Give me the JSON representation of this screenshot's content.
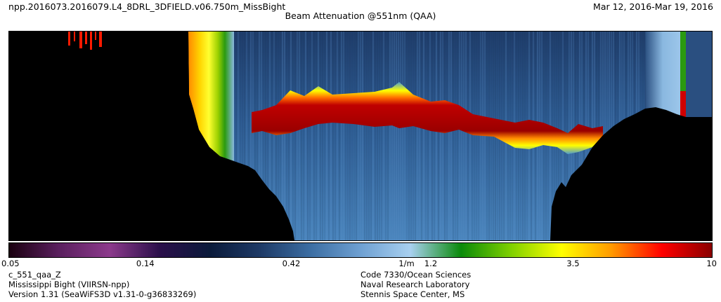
{
  "header": {
    "file_name": "npp.2016073.2016079.L4_8DRL_3DFIELD.v06.750m_MissBight",
    "date_range": "Mar 12, 2016-Mar 19, 2016",
    "product_title": "Beam Attenuation @551nm (QAA)"
  },
  "colorbar": {
    "ticks": [
      "0.05",
      "0.14",
      "0.42",
      "1/m",
      "1.2",
      "3.5",
      "10"
    ],
    "scale": "log",
    "range": [
      0.05,
      10
    ],
    "stops": [
      "#1a0010",
      "#5a1f5e",
      "#8c3a8c",
      "#2a0f4a",
      "#0a1a3a",
      "#1e3a66",
      "#3c6ea3",
      "#6ea0d2",
      "#a8d0f0",
      "#0a8a0a",
      "#7fd000",
      "#ffff00",
      "#ff9a00",
      "#ff0000",
      "#8a0000"
    ]
  },
  "footer": {
    "variable": "c_551_qaa_Z",
    "region": "Mississippi Bight (VIIRSN-npp)",
    "version": "Version 1.31 (SeaWiFS3D v1.31-0-g36833269)",
    "org_code": "Code 7330/Ocean Sciences",
    "org_name": "Naval Research Laboratory",
    "org_location": "Stennis Space Center, MS"
  },
  "chart_data": {
    "type": "heatmap",
    "title": "Beam Attenuation @551nm (QAA)",
    "colorscale_range": [
      0.05,
      10
    ],
    "colorscale_type": "log",
    "units": "1/m",
    "legend": "bottom"
  }
}
